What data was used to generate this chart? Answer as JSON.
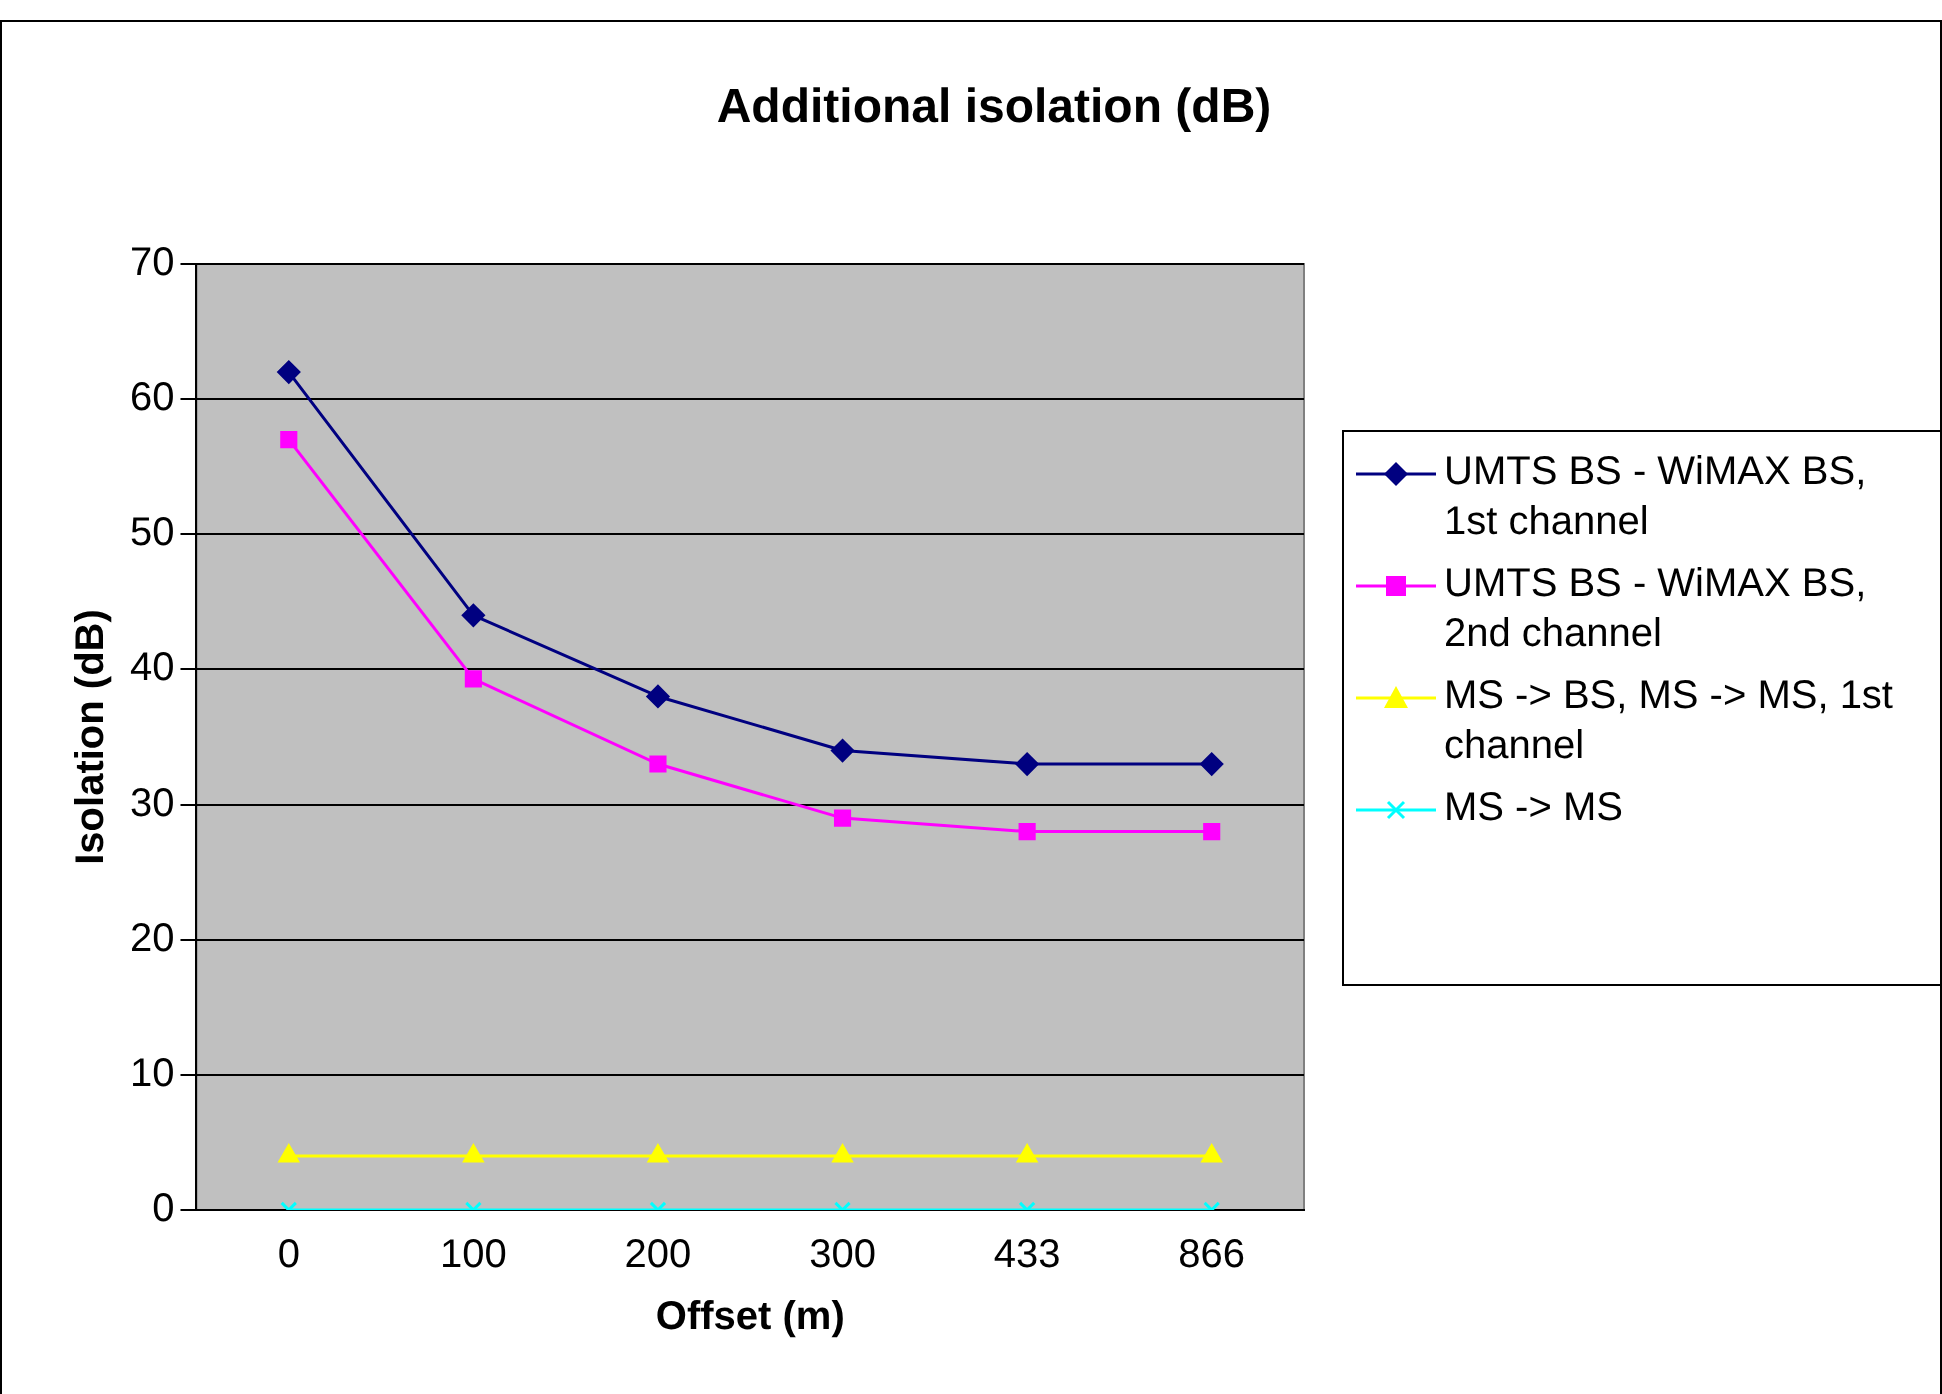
{
  "chart_data": {
    "type": "line",
    "title": "Additional isolation (dB)",
    "xlabel": "Offset (m)",
    "ylabel": "Isolation (dB)",
    "categories": [
      "0",
      "100",
      "200",
      "300",
      "433",
      "866"
    ],
    "ylim": [
      0,
      70
    ],
    "yticks": [
      0,
      10,
      20,
      30,
      40,
      50,
      60,
      70
    ],
    "grid": "y",
    "legend": "right",
    "line_style": "solid",
    "series": [
      {
        "name": "UMTS BS - WiMAX BS, 1st channel",
        "color": "#000080",
        "marker": "diamond",
        "values": [
          62,
          44,
          38,
          34,
          33,
          33
        ]
      },
      {
        "name": "UMTS BS - WiMAX BS, 2nd channel",
        "color": "#ff00ff",
        "marker": "square",
        "values": [
          57,
          39.3,
          33,
          29,
          28,
          28
        ]
      },
      {
        "name": "MS -> BS, MS -> MS, 1st channel",
        "color": "#ffff00",
        "marker": "triangle",
        "values": [
          4,
          4,
          4,
          4,
          4,
          4
        ]
      },
      {
        "name": "MS -> MS",
        "color": "#00ffff",
        "marker": "cross",
        "values": [
          0,
          0,
          0,
          0,
          0,
          0
        ]
      }
    ]
  }
}
